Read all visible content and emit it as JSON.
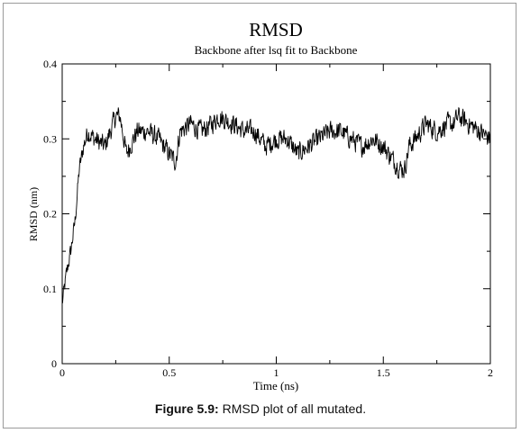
{
  "chart_data": {
    "type": "line",
    "title": "RMSD",
    "subtitle": "Backbone after lsq fit to Backbone",
    "xlabel": "Time (ns)",
    "ylabel": "RMSD (nm)",
    "xlim": [
      0,
      2
    ],
    "ylim": [
      0,
      0.4
    ],
    "xticks": [
      "0",
      "0.5",
      "1",
      "1.5",
      "2"
    ],
    "yticks": [
      "0",
      "0.1",
      "0.2",
      "0.3",
      "0.4"
    ],
    "grid": false,
    "series": [
      {
        "line_color": "#000000",
        "x": [
          0,
          0.02,
          0.04,
          0.06,
          0.08,
          0.1,
          0.12,
          0.15,
          0.2,
          0.25,
          0.27,
          0.3,
          0.35,
          0.4,
          0.45,
          0.5,
          0.53,
          0.55,
          0.6,
          0.65,
          0.7,
          0.73,
          0.8,
          0.85,
          0.9,
          0.95,
          1.0,
          1.05,
          1.1,
          1.15,
          1.2,
          1.25,
          1.3,
          1.35,
          1.4,
          1.45,
          1.5,
          1.55,
          1.58,
          1.6,
          1.62,
          1.65,
          1.7,
          1.75,
          1.8,
          1.83,
          1.85,
          1.9,
          1.95,
          2.0
        ],
        "y": [
          0.08,
          0.12,
          0.15,
          0.19,
          0.26,
          0.29,
          0.31,
          0.3,
          0.29,
          0.33,
          0.33,
          0.28,
          0.31,
          0.31,
          0.3,
          0.28,
          0.27,
          0.31,
          0.32,
          0.31,
          0.32,
          0.33,
          0.32,
          0.31,
          0.31,
          0.29,
          0.3,
          0.3,
          0.28,
          0.29,
          0.3,
          0.31,
          0.31,
          0.3,
          0.29,
          0.3,
          0.29,
          0.27,
          0.26,
          0.26,
          0.29,
          0.3,
          0.32,
          0.31,
          0.32,
          0.32,
          0.33,
          0.32,
          0.31,
          0.3
        ]
      }
    ]
  },
  "caption": {
    "label": "Figure 5.9:",
    "text": " RMSD plot of all mutated."
  }
}
